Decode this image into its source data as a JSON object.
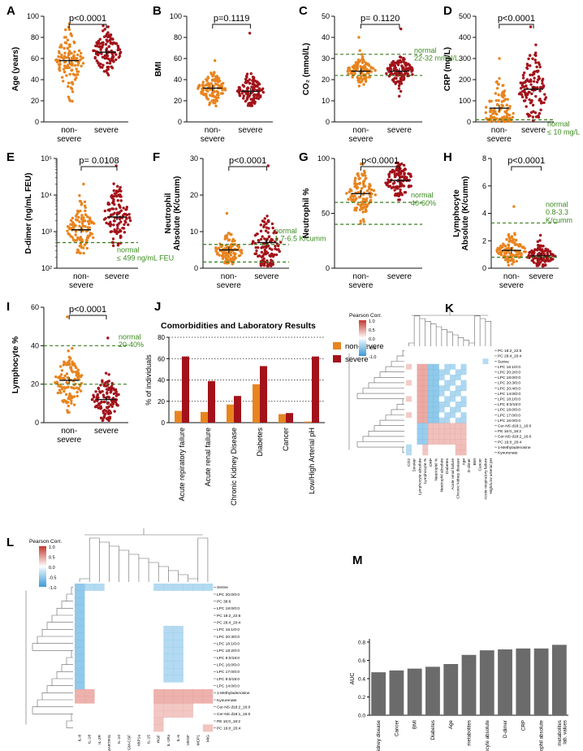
{
  "figure": {
    "panels": [
      {
        "letter": "A",
        "type": "scatter",
        "ylabel": "Age (years)",
        "ylim": [
          0,
          100
        ],
        "yticks": [
          "0",
          "20",
          "40",
          "60",
          "80",
          "100"
        ],
        "xcats": [
          "non-\nsevere",
          "severe"
        ],
        "pval": "p<0.0001",
        "means": [
          58,
          66
        ],
        "groups": [
          {
            "center": 58,
            "spread": 14,
            "min": 15,
            "max": 93
          },
          {
            "center": 66,
            "spread": 11,
            "min": 20,
            "max": 91
          }
        ]
      },
      {
        "letter": "B",
        "type": "scatter",
        "ylabel": "BMI",
        "ylim": [
          0,
          100
        ],
        "yticks": [
          "0",
          "20",
          "40",
          "60",
          "80",
          "100"
        ],
        "xcats": [
          "non-\nsevere",
          "severe"
        ],
        "pval": "p=0.1119",
        "means": [
          32,
          29
        ],
        "groups": [
          {
            "center": 32,
            "spread": 7,
            "min": 15,
            "max": 58
          },
          {
            "center": 29,
            "spread": 7,
            "min": 15,
            "max": 84
          }
        ]
      },
      {
        "letter": "C",
        "type": "scatter",
        "ylabel": "CO₂ (mmol/L)",
        "ylim": [
          0,
          50
        ],
        "yticks": [
          "0",
          "10",
          "20",
          "30",
          "40",
          "50"
        ],
        "xcats": [
          "non-\nsevere",
          "severe"
        ],
        "pval": "p= 0.1120",
        "means": [
          24,
          24
        ],
        "groups": [
          {
            "center": 24,
            "spread": 3,
            "min": 12,
            "max": 40
          },
          {
            "center": 24,
            "spread": 3.5,
            "min": 12,
            "max": 44
          }
        ],
        "normal": {
          "lines": [
            32,
            22
          ],
          "text": "normal\n22-32 mmol/L"
        }
      },
      {
        "letter": "D",
        "type": "scatter",
        "ylabel": "CRP  (mg/L)",
        "ylim": [
          0,
          500
        ],
        "yticks": [
          "0",
          "100",
          "200",
          "300",
          "400",
          "500"
        ],
        "xcats": [
          "non-\nsevere",
          "severe"
        ],
        "pval": "p<0.0001",
        "means": [
          65,
          155
        ],
        "groups": [
          {
            "center": 40,
            "spread": 70,
            "min": 1,
            "max": 300
          },
          {
            "center": 150,
            "spread": 90,
            "min": 5,
            "max": 450
          }
        ],
        "normal": {
          "lines": [
            10
          ],
          "text": "normal\n≤ 10 mg/L"
        }
      },
      {
        "letter": "E",
        "type": "scatter",
        "log": true,
        "ylabel": "D-dimer  (ng/mL FEU)",
        "ylim": [
          2,
          5
        ],
        "ytickLabels": [
          "10²",
          "10³",
          "10⁴",
          "10⁵"
        ],
        "xcats": [
          "non-\nsevere",
          "severe"
        ],
        "pval": "p= 0.0108",
        "means": [
          3.05,
          3.4
        ],
        "groups": [
          {
            "center": 3.05,
            "spread": 0.35,
            "min": 2.4,
            "max": 4.3
          },
          {
            "center": 3.4,
            "spread": 0.4,
            "min": 2.6,
            "max": 4.8
          }
        ],
        "normal": {
          "lines": [
            2.7
          ],
          "text": "normal\n≤ 499 ng/mL FEU"
        }
      },
      {
        "letter": "F",
        "type": "scatter",
        "ylabel": "Neutrophil\nAbsolute (K/cumm)",
        "ylim": [
          0,
          30
        ],
        "yticks": [
          "0",
          "10",
          "20",
          "30"
        ],
        "xcats": [
          "non-\nsevere",
          "severe"
        ],
        "pval": "p<0.0001",
        "means": [
          5,
          7
        ],
        "groups": [
          {
            "center": 4.8,
            "spread": 1.9,
            "min": 1,
            "max": 15
          },
          {
            "center": 6.5,
            "spread": 4,
            "min": 0.5,
            "max": 28
          }
        ],
        "normal": {
          "lines": [
            6.5,
            1.7
          ],
          "text": "normal\n1.7-6.5 K/cumm"
        }
      },
      {
        "letter": "G",
        "type": "scatter",
        "ylabel": "Neutrophil %",
        "ylim": [
          0,
          100
        ],
        "yticks": [
          "0",
          "50",
          "100"
        ],
        "xcats": [
          "non-\nsevere",
          "severe"
        ],
        "pval": "p<0.0001",
        "means": [
          68,
          80
        ],
        "groups": [
          {
            "center": 67,
            "spread": 10,
            "min": 40,
            "max": 95
          },
          {
            "center": 80,
            "spread": 8,
            "min": 45,
            "max": 96
          }
        ],
        "normal": {
          "lines": [
            60,
            40
          ],
          "text": "normal\n40-60%"
        }
      },
      {
        "letter": "H",
        "type": "scatter",
        "ylabel": "Lymphocyte\nAbsolute (K/cumm)",
        "ylim": [
          0,
          8
        ],
        "yticks": [
          "0",
          "2",
          "4",
          "6",
          "8"
        ],
        "xcats": [
          "non-\nsevere",
          "severe"
        ],
        "pval": "p<0.0001",
        "means": [
          1.3,
          0.9
        ],
        "groups": [
          {
            "center": 1.3,
            "spread": 0.5,
            "min": 0.2,
            "max": 4.5
          },
          {
            "center": 0.9,
            "spread": 0.4,
            "min": 0.1,
            "max": 2.4
          }
        ],
        "normal": {
          "lines": [
            3.3,
            0.8
          ],
          "text": "normal\n0.8-3.3\nK/cumm"
        }
      },
      {
        "letter": "I",
        "type": "scatter",
        "ylabel": "Lymphocyte %",
        "ylim": [
          0,
          60
        ],
        "yticks": [
          "0",
          "20",
          "40",
          "60"
        ],
        "xcats": [
          "non-\nsevere",
          "severe"
        ],
        "pval": "p<0.0001",
        "means": [
          22,
          12
        ],
        "groups": [
          {
            "center": 21,
            "spread": 8,
            "min": 3,
            "max": 55
          },
          {
            "center": 12,
            "spread": 6,
            "min": 1,
            "max": 44
          }
        ],
        "normal": {
          "lines": [
            40,
            20
          ],
          "text": "normal\n20-40%"
        }
      }
    ],
    "bar_panel": {
      "letter": "J",
      "title": "Comorbidities and Laboratory Results",
      "ylabel": "% of individuals",
      "yticks": [
        "0",
        "20",
        "40",
        "60",
        "80"
      ],
      "legend": [
        "non-severe",
        "severe"
      ]
    },
    "heatmap_K": {
      "letter": "K",
      "legend_title": "Pearson  Corr.",
      "legend_ticks": [
        "1.0",
        "0.5",
        "0.0",
        "-0.5",
        "-1.0"
      ],
      "rows": [
        "PC 18:2_22:6",
        "PC 28:4_20:4",
        "Serine",
        "LPC 16:1/0:0",
        "LPC 20:2/0:0",
        "LPC 18:0/0:0",
        "LPC 20:3/0:0",
        "LPC 20:4/0:0",
        "LPC 14:0/0:0",
        "LPC 18:1/0:0",
        "LPC 8:0/18:0",
        "LPC 18:0/0:0",
        "LPC 17:0/0:0",
        "LPC 16:0/0:0",
        "Cer-NS d18:1_16:0",
        "PE 16:0_18:2",
        "Cer-NS d18:2_16:0",
        "PC 16:0_20:4",
        "1-Methyladenosine",
        "Kynurenate"
      ],
      "cols": [
        "CO2",
        "Smoker",
        "Lymphocyte absolute",
        "Lymphocyte %",
        "CRP",
        "Neutrophil %",
        "Neutrophil absolute",
        "Diabetes",
        "Acute renal failure",
        "Chronic kidney disease",
        "Age",
        "D-dimer",
        "BMI",
        "Cancer",
        "Acute respiratory failure",
        "High/Low arterial pH"
      ]
    },
    "heatmap_L": {
      "letter": "L",
      "legend_title": "Pearson  Corr.",
      "legend_ticks": [
        "1.0",
        "0.5",
        "0.0",
        "-0.5",
        "-1.0"
      ],
      "rows": [
        "Serine",
        "LPC 20:0/0:0",
        "PC 38:6",
        "LPC 18:0/0:0",
        "PC 18:2_22:6",
        "PC 28:4_20:4",
        "LPC 16:1/0:0",
        "LPC 20:3/0:0",
        "LPC 18:1/0:0",
        "LPC 18:2/0:0",
        "LPC 8:0/18:0",
        "LPC 16:0/0:0",
        "LPC 17:0/0:0",
        "LPC 8:0/18:0",
        "LPC 14:0/0:0",
        "1-Methyladenosine",
        "Kynurenate",
        "Cer-NS d18:2_16:0",
        "Cer-NS d18:1_16:0",
        "PE 16:0_18:2",
        "PC 16:0_20:4"
      ],
      "cols": [
        "IL-8",
        "IL-18",
        "IL-2R",
        "MARTRIS",
        "IL-10",
        "GM-CSF",
        "MIP1a",
        "IL-15",
        "HGF",
        "IL-1Ra",
        "IL-6",
        "VEGF",
        "MCP1",
        "MIG"
      ]
    },
    "auc_panel": {
      "letter": "M",
      "ylabel": "AUC",
      "yticks": [
        "0.0",
        "0.2",
        "0.4",
        "0.6",
        "0.8"
      ]
    }
  },
  "chart_data": [
    {
      "type": "bar",
      "title": "Comorbidities and Laboratory Results",
      "categories": [
        "Acute repiratory failure",
        "Acute renal failure",
        "Chronic Kidney Disease",
        "Diabetes",
        "Cancer",
        "Low/High Arterial pH"
      ],
      "series": [
        {
          "name": "non-severe",
          "values": [
            11,
            10,
            17,
            36,
            8,
            1
          ]
        },
        {
          "name": "severe",
          "values": [
            62,
            39,
            25,
            53,
            9,
            62
          ]
        }
      ],
      "ylabel": "% of individuals",
      "ylim": [
        0,
        80
      ]
    },
    {
      "type": "bar",
      "title": "",
      "categories": [
        "Chronic kidney disease",
        "Cancer",
        "BMI",
        "Diabetes",
        "Age",
        "metabolites",
        "Lymphocyte absolute",
        "D-dimer",
        "CRP",
        "Neutrophil absolute",
        "metabolites\nlab. values"
      ],
      "values": [
        0.47,
        0.49,
        0.51,
        0.53,
        0.56,
        0.66,
        0.71,
        0.72,
        0.73,
        0.73,
        0.77
      ],
      "ylabel": "AUC",
      "ylim": [
        0,
        0.8
      ]
    }
  ],
  "colors": {
    "nonsevere": "#e8841f",
    "severe": "#a3121a",
    "normal_line": "#3b7d1e",
    "normal_text": "#3b8a1e",
    "bar_grey": "#6b6b6b",
    "heat_pos": "#e3867f",
    "heat_neg": "#5aaee0"
  }
}
